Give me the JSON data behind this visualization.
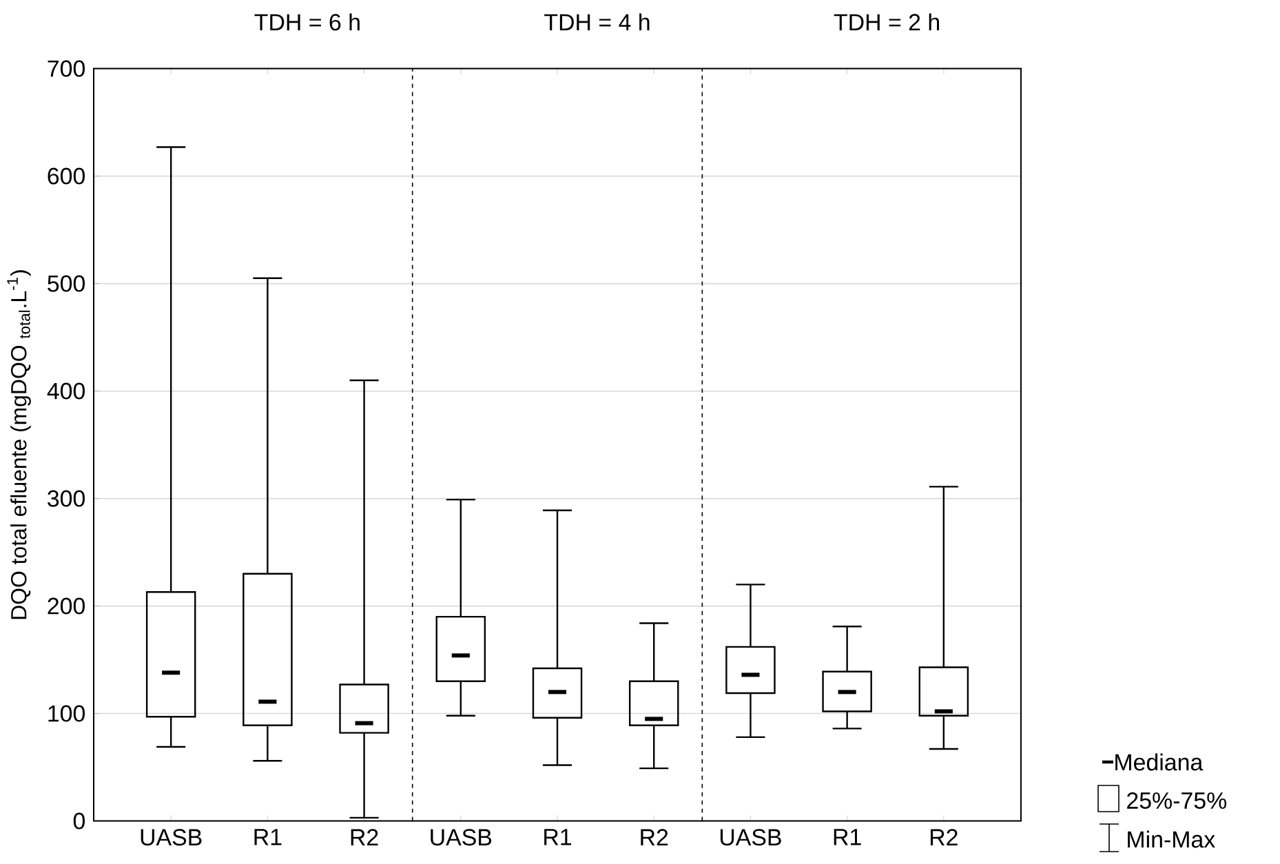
{
  "chart_data": {
    "type": "box",
    "ylabel": "DQO total efluente (mgDQO $_{total}$.L$^{-1}$)",
    "categories": [
      "UASB",
      "R1",
      "R2",
      "UASB",
      "R1",
      "R2",
      "UASB",
      "R1",
      "R2"
    ],
    "boxes": [
      {
        "low": 69,
        "q1": 97,
        "median": 138,
        "q3": 213,
        "high": 627
      },
      {
        "low": 56,
        "q1": 89,
        "median": 111,
        "q3": 230,
        "high": 505
      },
      {
        "low": 3,
        "q1": 82,
        "median": 91,
        "q3": 127,
        "high": 410
      },
      {
        "low": 98,
        "q1": 130,
        "median": 154,
        "q3": 190,
        "high": 299
      },
      {
        "low": 52,
        "q1": 96,
        "median": 120,
        "q3": 142,
        "high": 289
      },
      {
        "low": 49,
        "q1": 89,
        "median": 95,
        "q3": 130,
        "high": 184
      },
      {
        "low": 78,
        "q1": 119,
        "median": 136,
        "q3": 162,
        "high": 220
      },
      {
        "low": 86,
        "q1": 102,
        "median": 120,
        "q3": 139,
        "high": 181
      },
      {
        "low": 67,
        "q1": 98,
        "median": 102,
        "q3": 143,
        "high": 311
      }
    ],
    "color": "#000000",
    "ylim": [
      0,
      700
    ],
    "yticks": [
      0,
      100,
      200,
      300,
      400,
      500,
      600,
      700
    ],
    "grid": "y",
    "annotations": [
      "TDH = 6 h",
      "TDH = 4 h",
      "TDH = 2 h",
      "Mediana",
      "25%-75%",
      "Min-Max"
    ]
  }
}
